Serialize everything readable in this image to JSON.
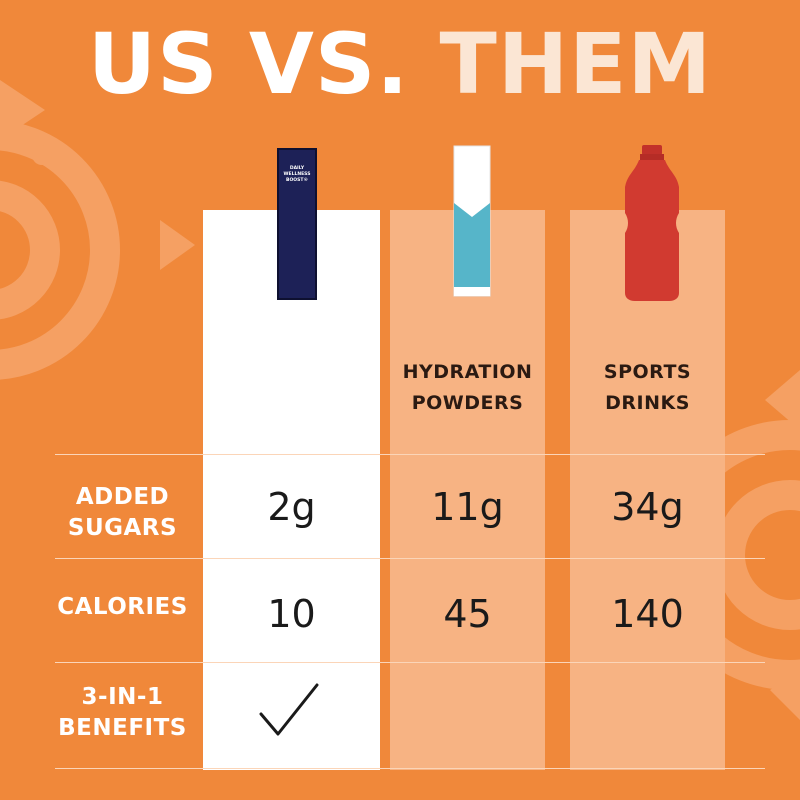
{
  "headline": {
    "us": "US VS.",
    "them": "THEM"
  },
  "products": {
    "us": {
      "package_text_lines": [
        "DAILY",
        "WELLNESS",
        "BOOST®"
      ],
      "color": "#1d2157",
      "icon": "navy-stick-pack-icon"
    },
    "powder": {
      "icon": "hydration-powder-stick-icon",
      "color": "#56b5c9"
    },
    "drink": {
      "icon": "sports-drink-bottle-icon",
      "color": "#d13a30"
    }
  },
  "columns": {
    "powder": {
      "header_line1": "HYDRATION",
      "header_line2": "POWDERS"
    },
    "drink": {
      "header_line1": "SPORTS",
      "header_line2": "DRINKS"
    }
  },
  "rows": [
    {
      "label_line1": "ADDED",
      "label_line2": "SUGARS",
      "us": "2g",
      "powder": "11g",
      "drink": "34g"
    },
    {
      "label_line1": "CALORIES",
      "label_line2": "",
      "us": "10",
      "powder": "45",
      "drink": "140"
    },
    {
      "label_line1": "3-IN-1",
      "label_line2": "BENEFITS",
      "us": "check-icon",
      "powder": "",
      "drink": ""
    }
  ],
  "colors": {
    "background": "#f0883a",
    "us_column": "#ffffff",
    "them_column": "#f7b383",
    "them_text": "#fbe6d4"
  }
}
